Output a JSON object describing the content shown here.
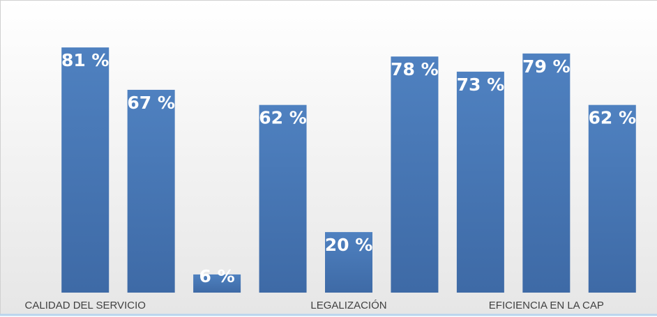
{
  "chart_data": {
    "type": "bar",
    "categories": [
      "CALIDAD DEL SERVICIO",
      null,
      null,
      null,
      "LEGALIZACIÓN",
      null,
      null,
      "EFICIENCIA EN LA CAP",
      null
    ],
    "values": [
      81,
      67,
      6,
      62,
      20,
      78,
      73,
      79,
      62
    ],
    "value_labels": [
      "81 %",
      "67 %",
      "6 %",
      "62 %",
      "20 %",
      "78 %",
      "73 %",
      "79 %",
      "62 %"
    ],
    "color": "#4a76b6",
    "ylim": [
      0,
      90
    ]
  }
}
